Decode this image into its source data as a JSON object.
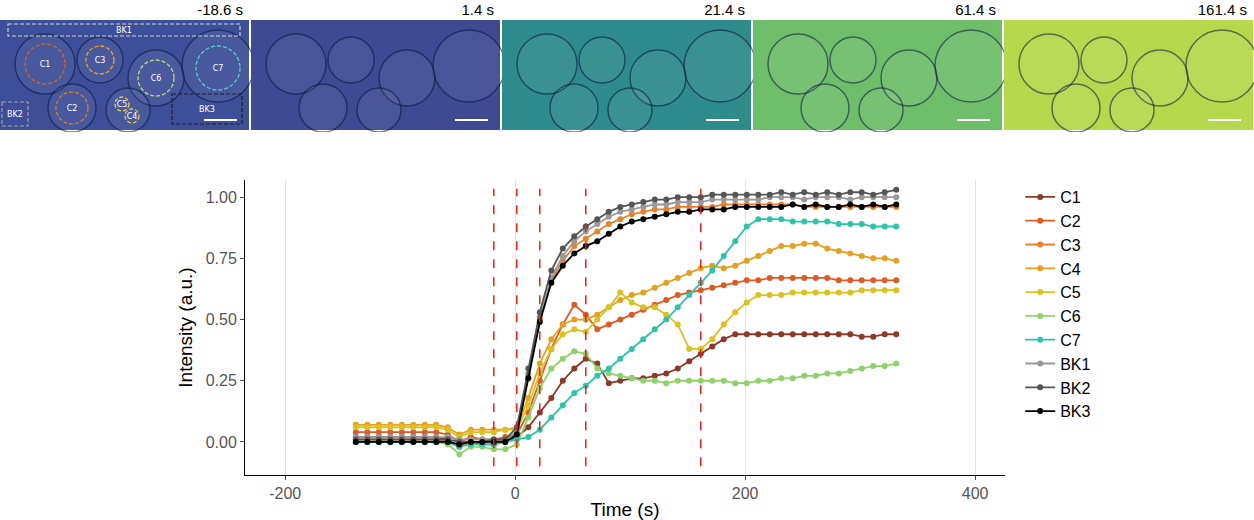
{
  "panels": [
    {
      "label": "-18.6 s",
      "color": "#3d4f98"
    },
    {
      "label": "1.4 s",
      "color": "#3f4a93"
    },
    {
      "label": "21.4 s",
      "color": "#2e8b8c"
    },
    {
      "label": "61.4 s",
      "color": "#6fbf6a"
    },
    {
      "label": "161.4 s",
      "color": "#b5d84c"
    }
  ],
  "regions": [
    {
      "label": "C1",
      "color": "#d4622e"
    },
    {
      "label": "C2",
      "color": "#e0782c"
    },
    {
      "label": "C3",
      "color": "#f0a030"
    },
    {
      "label": "C4",
      "color": "#e8c040"
    },
    {
      "label": "C5",
      "color": "#f0d040"
    },
    {
      "label": "C6",
      "color": "#b8e070"
    },
    {
      "label": "C7",
      "color": "#50d0c8"
    },
    {
      "label": "BK1",
      "color": "#d0d0d0"
    },
    {
      "label": "BK2",
      "color": "#a0a0a0"
    },
    {
      "label": "BK3",
      "color": "#202020"
    }
  ],
  "chart_data": {
    "type": "line",
    "x_label": "Time (s)",
    "y_label": "Intensity (a.u.)",
    "xlim": [
      -235,
      426
    ],
    "ylim": [
      -0.135,
      1.07
    ],
    "xticks": [
      -200,
      0,
      200,
      400
    ],
    "yticks": [
      {
        "value": 0,
        "label": "0.00"
      },
      {
        "value": 0.25,
        "label": "0.25"
      },
      {
        "value": 0.5,
        "label": "0.50"
      },
      {
        "value": 0.75,
        "label": "0.75"
      },
      {
        "value": 1,
        "label": "1.00"
      }
    ],
    "grid": true,
    "legend": "right",
    "marker": "circle",
    "line_style": "solid",
    "vlines": [
      -18.6,
      1.4,
      21.4,
      61.4,
      161.4
    ],
    "vline_color": "#e8201c",
    "x": [
      -138.6,
      -128.6,
      -118.6,
      -108.6,
      -98.6,
      -88.6,
      -78.6,
      -68.6,
      -58.6,
      -48.6,
      -38.6,
      -28.6,
      -18.6,
      -8.6,
      1.4,
      11.4,
      21.4,
      31.4,
      41.4,
      51.4,
      61.4,
      71.4,
      81.4,
      91.4,
      101.4,
      111.4,
      121.4,
      131.4,
      141.4,
      151.4,
      161.4,
      171.4,
      181.4,
      191.4,
      201.4,
      211.4,
      221.4,
      231.4,
      241.4,
      251.4,
      261.4,
      271.4,
      281.4,
      291.4,
      301.4,
      311.4,
      321.4,
      331.4
    ],
    "series": [
      {
        "name": "C1",
        "color": "#8b3a2a",
        "values": [
          0.02,
          0.02,
          0.02,
          0.02,
          0.02,
          0.02,
          0.02,
          0.02,
          0.01,
          -0.02,
          0.0,
          -0.01,
          -0.01,
          0.0,
          0.02,
          0.06,
          0.12,
          0.18,
          0.25,
          0.3,
          0.34,
          0.32,
          0.24,
          0.25,
          0.26,
          0.26,
          0.27,
          0.28,
          0.3,
          0.33,
          0.36,
          0.39,
          0.42,
          0.44,
          0.44,
          0.44,
          0.44,
          0.44,
          0.44,
          0.44,
          0.44,
          0.44,
          0.44,
          0.44,
          0.43,
          0.43,
          0.44,
          0.44
        ]
      },
      {
        "name": "C2",
        "color": "#e05a28",
        "values": [
          0.04,
          0.04,
          0.04,
          0.04,
          0.04,
          0.04,
          0.04,
          0.04,
          0.03,
          0.0,
          0.02,
          0.01,
          0.01,
          0.02,
          0.03,
          0.12,
          0.25,
          0.38,
          0.48,
          0.56,
          0.52,
          0.46,
          0.48,
          0.5,
          0.52,
          0.54,
          0.56,
          0.58,
          0.6,
          0.61,
          0.62,
          0.63,
          0.64,
          0.65,
          0.66,
          0.66,
          0.67,
          0.67,
          0.67,
          0.67,
          0.67,
          0.67,
          0.66,
          0.66,
          0.66,
          0.66,
          0.66,
          0.66
        ]
      },
      {
        "name": "C3",
        "color": "#e8822a",
        "values": [
          0.01,
          0.01,
          0.01,
          0.01,
          0.01,
          0.01,
          0.01,
          0.01,
          0.0,
          -0.02,
          0.0,
          0.0,
          0.0,
          0.01,
          0.04,
          0.27,
          0.5,
          0.66,
          0.74,
          0.8,
          0.83,
          0.86,
          0.89,
          0.91,
          0.93,
          0.94,
          0.95,
          0.95,
          0.96,
          0.96,
          0.96,
          0.96,
          0.97,
          0.97,
          0.97,
          0.97,
          0.97,
          0.97,
          0.97,
          0.96,
          0.96,
          0.96,
          0.96,
          0.96,
          0.96,
          0.96,
          0.96,
          0.96
        ]
      },
      {
        "name": "C4",
        "color": "#e5a020",
        "values": [
          0.07,
          0.07,
          0.07,
          0.07,
          0.07,
          0.07,
          0.07,
          0.07,
          0.06,
          0.03,
          0.05,
          0.05,
          0.05,
          0.05,
          0.06,
          0.18,
          0.32,
          0.42,
          0.48,
          0.5,
          0.5,
          0.52,
          0.55,
          0.58,
          0.6,
          0.61,
          0.63,
          0.65,
          0.67,
          0.69,
          0.71,
          0.72,
          0.71,
          0.72,
          0.74,
          0.76,
          0.78,
          0.8,
          0.8,
          0.81,
          0.81,
          0.79,
          0.78,
          0.77,
          0.76,
          0.75,
          0.75,
          0.74
        ]
      },
      {
        "name": "C5",
        "color": "#d9c21e",
        "values": [
          0.06,
          0.06,
          0.06,
          0.06,
          0.06,
          0.06,
          0.06,
          0.06,
          0.05,
          0.02,
          0.04,
          0.04,
          0.04,
          0.05,
          0.05,
          0.15,
          0.28,
          0.38,
          0.44,
          0.46,
          0.45,
          0.5,
          0.55,
          0.61,
          0.57,
          0.55,
          0.55,
          0.52,
          0.48,
          0.38,
          0.38,
          0.42,
          0.48,
          0.53,
          0.57,
          0.6,
          0.6,
          0.6,
          0.61,
          0.61,
          0.61,
          0.61,
          0.61,
          0.61,
          0.62,
          0.62,
          0.62,
          0.62
        ]
      },
      {
        "name": "C6",
        "color": "#8fd16b",
        "values": [
          0.0,
          0.0,
          0.0,
          0.0,
          0.0,
          0.0,
          0.0,
          0.0,
          -0.01,
          -0.05,
          -0.02,
          -0.02,
          -0.03,
          -0.03,
          -0.01,
          0.1,
          0.22,
          0.3,
          0.34,
          0.37,
          0.36,
          0.3,
          0.28,
          0.27,
          0.26,
          0.25,
          0.25,
          0.24,
          0.25,
          0.25,
          0.25,
          0.25,
          0.25,
          0.24,
          0.24,
          0.25,
          0.25,
          0.26,
          0.26,
          0.27,
          0.27,
          0.28,
          0.28,
          0.29,
          0.3,
          0.31,
          0.31,
          0.32
        ]
      },
      {
        "name": "C7",
        "color": "#2ec4a8",
        "values": [
          0.0,
          0.0,
          0.0,
          0.0,
          0.0,
          0.0,
          0.0,
          0.0,
          0.0,
          -0.02,
          -0.01,
          -0.01,
          -0.01,
          0.0,
          0.01,
          0.02,
          0.05,
          0.1,
          0.15,
          0.2,
          0.23,
          0.27,
          0.3,
          0.34,
          0.38,
          0.42,
          0.46,
          0.5,
          0.55,
          0.6,
          0.65,
          0.7,
          0.76,
          0.82,
          0.88,
          0.91,
          0.91,
          0.91,
          0.9,
          0.9,
          0.9,
          0.9,
          0.89,
          0.89,
          0.89,
          0.88,
          0.88,
          0.88
        ]
      },
      {
        "name": "BK1",
        "color": "#999999",
        "values": [
          0.02,
          0.02,
          0.02,
          0.02,
          0.02,
          0.02,
          0.02,
          0.02,
          0.02,
          0.01,
          0.01,
          0.01,
          0.01,
          0.01,
          0.04,
          0.28,
          0.51,
          0.67,
          0.76,
          0.82,
          0.86,
          0.89,
          0.92,
          0.94,
          0.95,
          0.96,
          0.97,
          0.97,
          0.98,
          0.98,
          0.98,
          0.99,
          0.99,
          0.99,
          0.99,
          0.99,
          1.0,
          1.0,
          1.0,
          0.99,
          1.0,
          1.0,
          1.0,
          0.99,
          1.0,
          1.0,
          1.0,
          1.0
        ]
      },
      {
        "name": "BK2",
        "color": "#555555",
        "values": [
          0.01,
          0.01,
          0.01,
          0.01,
          0.01,
          0.01,
          0.01,
          0.01,
          0.01,
          0.0,
          0.0,
          0.0,
          0.01,
          0.01,
          0.06,
          0.3,
          0.53,
          0.7,
          0.79,
          0.84,
          0.88,
          0.91,
          0.94,
          0.96,
          0.97,
          0.98,
          0.99,
          0.99,
          1.0,
          1.0,
          1.0,
          1.01,
          1.01,
          1.01,
          1.01,
          1.01,
          1.01,
          1.02,
          1.01,
          1.02,
          1.01,
          1.02,
          1.01,
          1.02,
          1.02,
          1.01,
          1.02,
          1.03
        ]
      },
      {
        "name": "BK3",
        "color": "#000000",
        "values": [
          0.0,
          0.0,
          0.0,
          0.0,
          0.0,
          0.0,
          0.0,
          0.0,
          0.0,
          -0.01,
          0.0,
          0.0,
          0.0,
          0.0,
          0.03,
          0.26,
          0.49,
          0.65,
          0.72,
          0.77,
          0.8,
          0.82,
          0.85,
          0.88,
          0.9,
          0.91,
          0.92,
          0.93,
          0.94,
          0.94,
          0.95,
          0.95,
          0.95,
          0.96,
          0.96,
          0.96,
          0.96,
          0.96,
          0.97,
          0.96,
          0.97,
          0.96,
          0.96,
          0.97,
          0.96,
          0.97,
          0.96,
          0.97
        ]
      }
    ]
  }
}
